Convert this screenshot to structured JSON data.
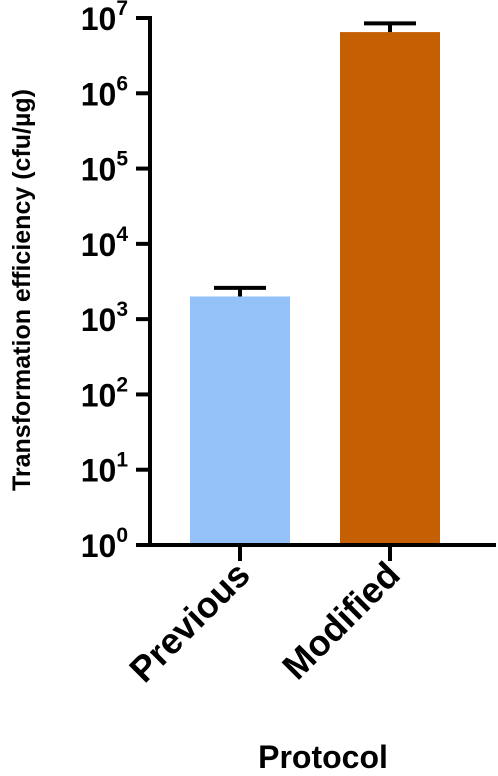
{
  "chart_data": {
    "type": "bar",
    "yscale": "log",
    "categories": [
      "Previous",
      "Modified"
    ],
    "values": [
      2000,
      6500000
    ],
    "error_upper": [
      2600,
      8500000
    ],
    "colors": [
      "#94c1f8",
      "#c55f04"
    ],
    "xlabel": "Protocol",
    "ylabel": "Transformation efficiency (cfu/µg)",
    "ylim": [
      1,
      10000000
    ],
    "ytick_labels": [
      {
        "base": "10",
        "exp": "0",
        "value": 1
      },
      {
        "base": "10",
        "exp": "1",
        "value": 10
      },
      {
        "base": "10",
        "exp": "2",
        "value": 100
      },
      {
        "base": "10",
        "exp": "3",
        "value": 1000
      },
      {
        "base": "10",
        "exp": "4",
        "value": 10000
      },
      {
        "base": "10",
        "exp": "5",
        "value": 100000
      },
      {
        "base": "10",
        "exp": "6",
        "value": 1000000
      },
      {
        "base": "10",
        "exp": "7",
        "value": 10000000
      }
    ],
    "grid": false,
    "legend": "none"
  }
}
